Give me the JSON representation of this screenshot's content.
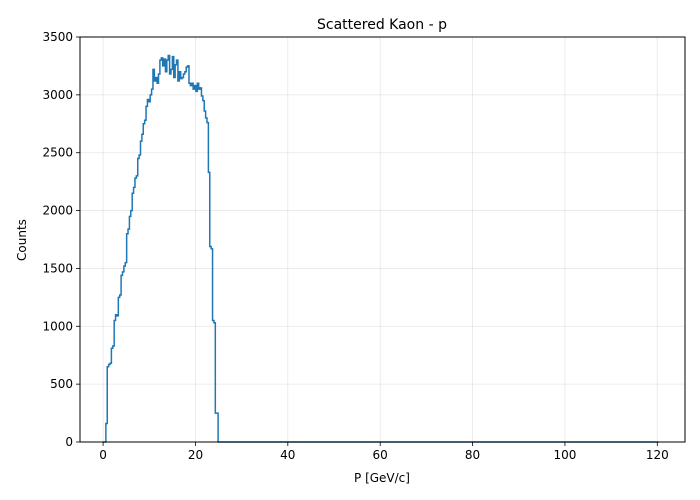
{
  "chart_data": {
    "type": "histogram",
    "title": "Scattered Kaon - p",
    "xlabel": "P [GeV/c]",
    "ylabel": "Counts",
    "xlim": [
      -5,
      126
    ],
    "ylim": [
      0,
      3500
    ],
    "xticks": [
      0,
      20,
      40,
      60,
      80,
      100,
      120
    ],
    "yticks": [
      0,
      500,
      1000,
      1500,
      2000,
      2500,
      3000,
      3500
    ],
    "grid": true,
    "color": "#1f77b4",
    "bin_width": 0.3,
    "bins": [
      [
        0.0,
        0
      ],
      [
        0.3,
        0
      ],
      [
        0.6,
        160
      ],
      [
        0.9,
        650
      ],
      [
        1.2,
        670
      ],
      [
        1.5,
        680
      ],
      [
        1.8,
        810
      ],
      [
        2.1,
        830
      ],
      [
        2.4,
        1050
      ],
      [
        2.7,
        1100
      ],
      [
        3.0,
        1090
      ],
      [
        3.3,
        1250
      ],
      [
        3.6,
        1270
      ],
      [
        3.9,
        1440
      ],
      [
        4.2,
        1470
      ],
      [
        4.5,
        1520
      ],
      [
        4.8,
        1550
      ],
      [
        5.1,
        1800
      ],
      [
        5.4,
        1840
      ],
      [
        5.7,
        1950
      ],
      [
        6.0,
        2000
      ],
      [
        6.3,
        2150
      ],
      [
        6.6,
        2200
      ],
      [
        6.9,
        2280
      ],
      [
        7.2,
        2300
      ],
      [
        7.5,
        2450
      ],
      [
        7.8,
        2480
      ],
      [
        8.1,
        2600
      ],
      [
        8.4,
        2660
      ],
      [
        8.7,
        2750
      ],
      [
        9.0,
        2780
      ],
      [
        9.3,
        2900
      ],
      [
        9.6,
        2960
      ],
      [
        9.9,
        2940
      ],
      [
        10.2,
        3000
      ],
      [
        10.5,
        3050
      ],
      [
        10.8,
        3220
      ],
      [
        11.1,
        3120
      ],
      [
        11.4,
        3150
      ],
      [
        11.7,
        3100
      ],
      [
        12.0,
        3180
      ],
      [
        12.3,
        3300
      ],
      [
        12.6,
        3320
      ],
      [
        12.9,
        3250
      ],
      [
        13.2,
        3310
      ],
      [
        13.5,
        3200
      ],
      [
        13.8,
        3300
      ],
      [
        14.1,
        3340
      ],
      [
        14.4,
        3180
      ],
      [
        14.7,
        3220
      ],
      [
        15.0,
        3330
      ],
      [
        15.3,
        3150
      ],
      [
        15.6,
        3260
      ],
      [
        15.9,
        3300
      ],
      [
        16.2,
        3120
      ],
      [
        16.5,
        3200
      ],
      [
        16.8,
        3140
      ],
      [
        17.1,
        3150
      ],
      [
        17.4,
        3180
      ],
      [
        17.7,
        3200
      ],
      [
        18.0,
        3240
      ],
      [
        18.3,
        3250
      ],
      [
        18.6,
        3100
      ],
      [
        18.9,
        3080
      ],
      [
        19.2,
        3100
      ],
      [
        19.5,
        3050
      ],
      [
        19.8,
        3080
      ],
      [
        20.1,
        3030
      ],
      [
        20.4,
        3100
      ],
      [
        20.7,
        3050
      ],
      [
        21.0,
        3060
      ],
      [
        21.3,
        2990
      ],
      [
        21.6,
        2950
      ],
      [
        21.9,
        2860
      ],
      [
        22.2,
        2800
      ],
      [
        22.5,
        2760
      ],
      [
        22.8,
        2330
      ],
      [
        23.1,
        1690
      ],
      [
        23.4,
        1670
      ],
      [
        23.7,
        1050
      ],
      [
        24.0,
        1030
      ],
      [
        24.3,
        250
      ],
      [
        24.6,
        250
      ],
      [
        24.9,
        0
      ],
      [
        25.2,
        0
      ],
      [
        25.5,
        0
      ],
      [
        120.0,
        0
      ]
    ]
  }
}
